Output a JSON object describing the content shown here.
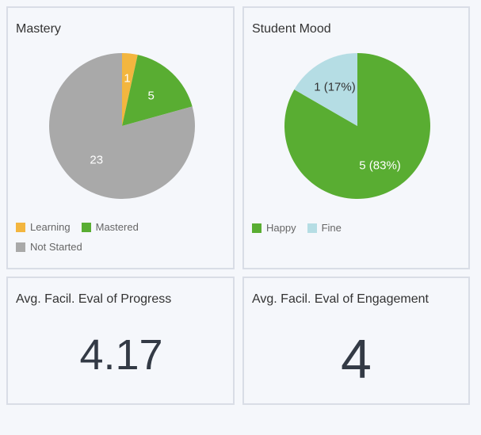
{
  "cards": {
    "mastery": {
      "title": "Mastery",
      "chart_data": {
        "type": "pie",
        "slices": [
          {
            "label": "Learning",
            "value": 1,
            "display": "1",
            "color": "#f3b63f"
          },
          {
            "label": "Mastered",
            "value": 5,
            "display": "5",
            "color": "#59ad32"
          },
          {
            "label": "Not Started",
            "value": 23,
            "display": "23",
            "color": "#a9a9a9"
          }
        ]
      },
      "legend": [
        "Learning",
        "Mastered",
        "Not Started"
      ]
    },
    "mood": {
      "title": "Student Mood",
      "chart_data": {
        "type": "pie",
        "slices": [
          {
            "label": "Happy",
            "value": 5,
            "display": "5 (83%)",
            "color": "#59ad32"
          },
          {
            "label": "Fine",
            "value": 1,
            "display": "1 (17%)",
            "color": "#b5dde4"
          }
        ]
      },
      "legend": [
        "Happy",
        "Fine"
      ]
    },
    "progress": {
      "title": "Avg. Facil. Eval of Progress",
      "value": "4.17"
    },
    "engagement": {
      "title": "Avg. Facil. Eval of Engagement",
      "value": "4"
    }
  },
  "colors": {
    "learning": "#f3b63f",
    "mastered": "#59ad32",
    "not_started": "#a9a9a9",
    "happy": "#59ad32",
    "fine": "#b5dde4"
  }
}
